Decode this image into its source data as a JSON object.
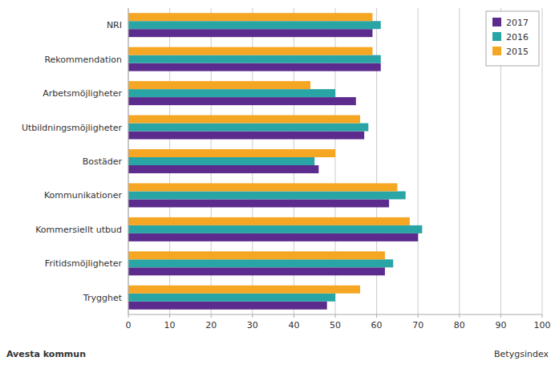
{
  "chart_data": {
    "type": "bar",
    "orientation": "horizontal",
    "categories": [
      "NRI",
      "Rekommendation",
      "Arbetsmöjligheter",
      "Utbildningsmöjligheter",
      "Bostäder",
      "Kommunikationer",
      "Kommersiellt utbud",
      "Fritidsmöjligheter",
      "Trygghet"
    ],
    "series": [
      {
        "name": "2017",
        "color": "#5b2c8d",
        "values": [
          59,
          61,
          55,
          57,
          46,
          63,
          70,
          62,
          48
        ]
      },
      {
        "name": "2016",
        "color": "#2aa5a5",
        "values": [
          61,
          61,
          50,
          58,
          45,
          67,
          71,
          64,
          50
        ]
      },
      {
        "name": "2015",
        "color": "#f5a623",
        "values": [
          59,
          59,
          44,
          56,
          50,
          65,
          68,
          62,
          56
        ]
      }
    ],
    "xlabel": "Betygsindex",
    "xlim": [
      0,
      100
    ],
    "xticks": [
      0,
      10,
      20,
      30,
      40,
      50,
      60,
      70,
      80,
      90,
      100
    ],
    "grid": true,
    "legend": "top-right",
    "annotations": [
      "Avesta kommun"
    ]
  }
}
